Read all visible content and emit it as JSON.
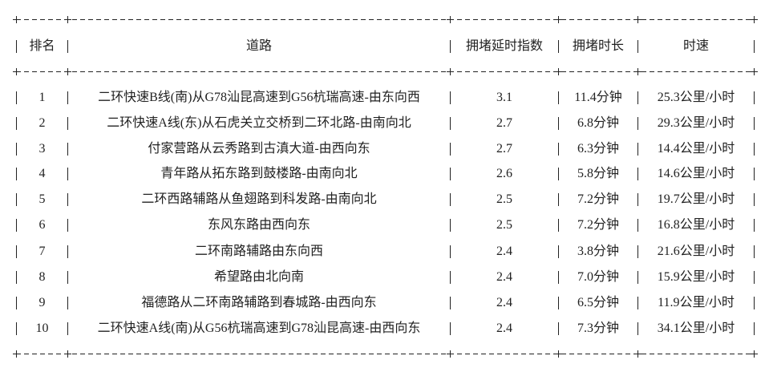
{
  "table": {
    "headers": [
      "排名",
      "道路",
      "拥堵延时指数",
      "拥堵时长",
      "时速"
    ],
    "rows": [
      [
        "1",
        "二环快速B线(南)从G78汕昆高速到G56杭瑞高速-由东向西",
        "3.1",
        "11.4分钟",
        "25.3公里/小时"
      ],
      [
        "2",
        "二环快速A线(东)从石虎关立交桥到二环北路-由南向北",
        "2.7",
        "6.8分钟",
        "29.3公里/小时"
      ],
      [
        "3",
        "付家营路从云秀路到古滇大道-由西向东",
        "2.7",
        "6.3分钟",
        "14.4公里/小时"
      ],
      [
        "4",
        "青年路从拓东路到鼓楼路-由南向北",
        "2.6",
        "5.8分钟",
        "14.6公里/小时"
      ],
      [
        "5",
        "二环西路辅路从鱼翅路到科发路-由南向北",
        "2.5",
        "7.2分钟",
        "19.7公里/小时"
      ],
      [
        "6",
        "东风东路由西向东",
        "2.5",
        "7.2分钟",
        "16.8公里/小时"
      ],
      [
        "7",
        "二环南路辅路由东向西",
        "2.4",
        "3.8分钟",
        "21.6公里/小时"
      ],
      [
        "8",
        "希望路由北向南",
        "2.4",
        "7.0分钟",
        "15.9公里/小时"
      ],
      [
        "9",
        "福德路从二环南路辅路到春城路-由西向东",
        "2.4",
        "6.5分钟",
        "11.9公里/小时"
      ],
      [
        "10",
        "二环快速A线(南)从G56杭瑞高速到G78汕昆高速-由西向东",
        "2.4",
        "7.3分钟",
        "34.1公里/小时"
      ]
    ]
  }
}
